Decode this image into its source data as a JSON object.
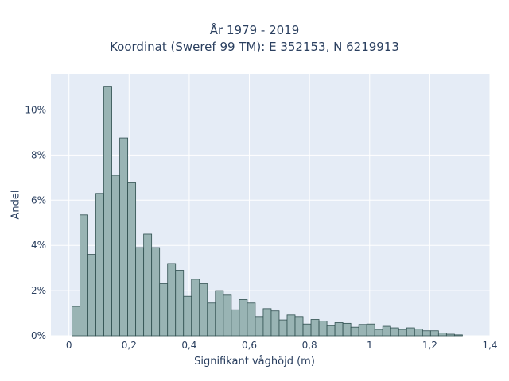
{
  "chart_data": {
    "type": "bar",
    "title_lines": [
      "År 1979 - 2019",
      "Koordinat (Sweref 99 TM): E 352153, N 6219913"
    ],
    "xlabel": "Signifikant våghöjd (m)",
    "ylabel": "Andel",
    "xlim": [
      -0.06,
      1.4
    ],
    "ylim": [
      0,
      11.6
    ],
    "xticks": [
      0,
      0.2,
      0.4,
      0.6,
      0.8,
      1,
      1.2,
      1.4
    ],
    "xtick_labels": [
      "0",
      "0,2",
      "0,4",
      "0,6",
      "0,8",
      "1",
      "1,2",
      "1,4"
    ],
    "yticks": [
      0,
      2,
      4,
      6,
      8,
      10
    ],
    "ytick_labels": [
      "0%",
      "2%",
      "4%",
      "6%",
      "8%",
      "10%"
    ],
    "bin_start": 0.01,
    "bin_width": 0.0265,
    "values": [
      1.3,
      5.35,
      3.6,
      6.3,
      11.05,
      7.1,
      8.75,
      6.8,
      3.9,
      4.5,
      3.9,
      2.3,
      3.2,
      2.9,
      1.75,
      2.5,
      2.3,
      1.45,
      2.0,
      1.8,
      1.15,
      1.6,
      1.45,
      0.85,
      1.2,
      1.1,
      0.7,
      0.92,
      0.85,
      0.52,
      0.72,
      0.65,
      0.45,
      0.58,
      0.55,
      0.38,
      0.5,
      0.52,
      0.28,
      0.42,
      0.35,
      0.28,
      0.35,
      0.3,
      0.22,
      0.22,
      0.12,
      0.07,
      0.04
    ],
    "grid": true,
    "colors": {
      "plot_bg": "#e5ecf6",
      "grid": "#ffffff",
      "bar_fill": "#99b4b4",
      "bar_edge": "#2f4f4f",
      "text": "#2a3f5f"
    }
  }
}
